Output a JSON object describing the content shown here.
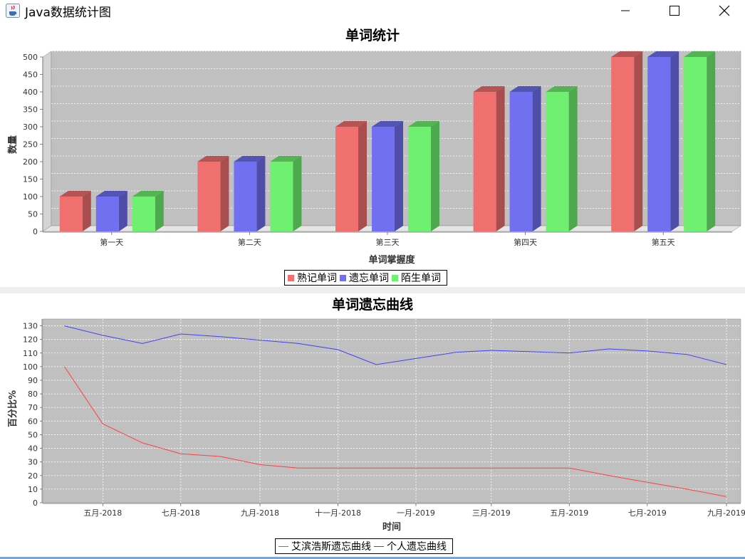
{
  "window": {
    "title": "Java数据统计图",
    "icon": "java-cup-icon"
  },
  "colors": {
    "plot_bg": "#c0c0c0",
    "grid": "#ffffff",
    "series_red": "#f07070",
    "series_blue": "#7070f0",
    "series_green": "#70f070",
    "line_red": "#ff4040",
    "line_blue": "#4040ff"
  },
  "chart_data": [
    {
      "type": "bar",
      "style": "3d",
      "title": "单词统计",
      "xlabel": "单词掌握度",
      "ylabel": "数量",
      "categories": [
        "第一天",
        "第二天",
        "第三天",
        "第四天",
        "第五天"
      ],
      "ylim": [
        0,
        500
      ],
      "yticks": [
        0,
        50,
        100,
        150,
        200,
        250,
        300,
        350,
        400,
        450,
        500
      ],
      "grid": true,
      "legend_position": "bottom",
      "series": [
        {
          "name": "熟记单词",
          "color": "#f07070",
          "values": [
            100,
            200,
            300,
            400,
            500
          ]
        },
        {
          "name": "遗忘单词",
          "color": "#7070f0",
          "values": [
            100,
            200,
            300,
            400,
            500
          ]
        },
        {
          "name": "陌生单词",
          "color": "#70f070",
          "values": [
            100,
            200,
            300,
            400,
            500
          ]
        }
      ]
    },
    {
      "type": "line",
      "title": "单词遗忘曲线",
      "xlabel": "时间",
      "ylabel": "百分比%",
      "ylim": [
        0,
        135
      ],
      "yticks": [
        0,
        10,
        20,
        30,
        40,
        50,
        60,
        70,
        80,
        90,
        100,
        110,
        120,
        130
      ],
      "x_range": [
        "2018-03-15",
        "2019-09-01"
      ],
      "xticks": [
        {
          "label": "五月-2018",
          "date": "2018-05-01"
        },
        {
          "label": "七月-2018",
          "date": "2018-07-01"
        },
        {
          "label": "九月-2018",
          "date": "2018-09-01"
        },
        {
          "label": "十一月-2018",
          "date": "2018-11-01"
        },
        {
          "label": "一月-2019",
          "date": "2019-01-01"
        },
        {
          "label": "三月-2019",
          "date": "2019-03-01"
        },
        {
          "label": "五月-2019",
          "date": "2019-05-01"
        },
        {
          "label": "七月-2019",
          "date": "2019-07-01"
        },
        {
          "label": "九月-2019",
          "date": "2019-09-01"
        }
      ],
      "grid": true,
      "legend_position": "bottom",
      "series": [
        {
          "name": "艾滨浩斯遗忘曲线",
          "color": "#ff4040",
          "points": [
            [
              "2018-04-01",
              100
            ],
            [
              "2018-05-01",
              58
            ],
            [
              "2018-06-01",
              44
            ],
            [
              "2018-07-01",
              36
            ],
            [
              "2018-08-01",
              34
            ],
            [
              "2018-09-01",
              28
            ],
            [
              "2018-10-01",
              25.5
            ],
            [
              "2018-11-01",
              25.5
            ],
            [
              "2018-12-01",
              25.5
            ],
            [
              "2019-01-01",
              25.5
            ],
            [
              "2019-02-01",
              25.5
            ],
            [
              "2019-03-01",
              25.5
            ],
            [
              "2019-04-01",
              25.5
            ],
            [
              "2019-05-01",
              25.5
            ],
            [
              "2019-06-01",
              20
            ],
            [
              "2019-07-01",
              15
            ],
            [
              "2019-08-01",
              10
            ],
            [
              "2019-09-01",
              4.5
            ]
          ]
        },
        {
          "name": "个人遗忘曲线",
          "color": "#4040ff",
          "points": [
            [
              "2018-04-01",
              130
            ],
            [
              "2018-05-01",
              123
            ],
            [
              "2018-06-01",
              117
            ],
            [
              "2018-07-01",
              124
            ],
            [
              "2018-08-01",
              122
            ],
            [
              "2018-09-01",
              119.5
            ],
            [
              "2018-10-01",
              117
            ],
            [
              "2018-11-01",
              112.5
            ],
            [
              "2018-12-01",
              101.5
            ],
            [
              "2019-01-01",
              106
            ],
            [
              "2019-02-01",
              110.5
            ],
            [
              "2019-03-01",
              112
            ],
            [
              "2019-04-01",
              111
            ],
            [
              "2019-05-01",
              110
            ],
            [
              "2019-06-01",
              113
            ],
            [
              "2019-07-01",
              111.5
            ],
            [
              "2019-08-01",
              109
            ],
            [
              "2019-09-01",
              101.5
            ]
          ]
        }
      ]
    }
  ]
}
